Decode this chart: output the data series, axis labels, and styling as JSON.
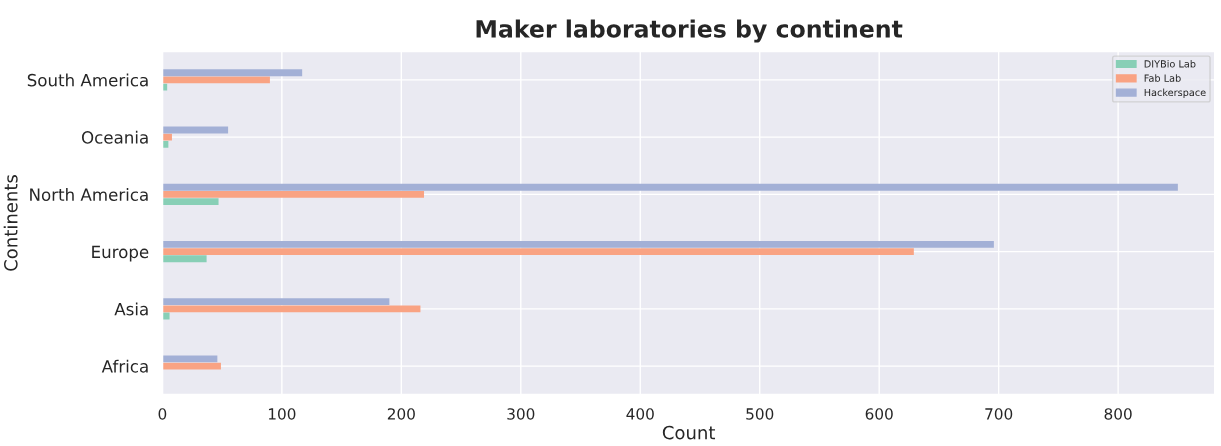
{
  "chart_data": {
    "type": "bar",
    "orientation": "horizontal",
    "title": "Maker laboratories by continent",
    "xlabel": "Count",
    "ylabel": "Continents",
    "categories": [
      "South America",
      "Oceania",
      "North America",
      "Europe",
      "Asia",
      "Africa"
    ],
    "series": [
      {
        "name": "DIYBio Lab",
        "color": "#88cfb6",
        "values": [
          4,
          5,
          47,
          37,
          6,
          null
        ]
      },
      {
        "name": "Fab Lab",
        "color": "#f9a383",
        "values": [
          90,
          8,
          219,
          629,
          216,
          49
        ]
      },
      {
        "name": "Hackerspace",
        "color": "#a3b0d6",
        "values": [
          117,
          55,
          850,
          696,
          190,
          46
        ]
      }
    ],
    "xlim": [
      0,
      881
    ],
    "xticks": [
      0,
      100,
      200,
      300,
      400,
      500,
      600,
      700,
      800
    ],
    "grid": true,
    "legend": "top right"
  }
}
